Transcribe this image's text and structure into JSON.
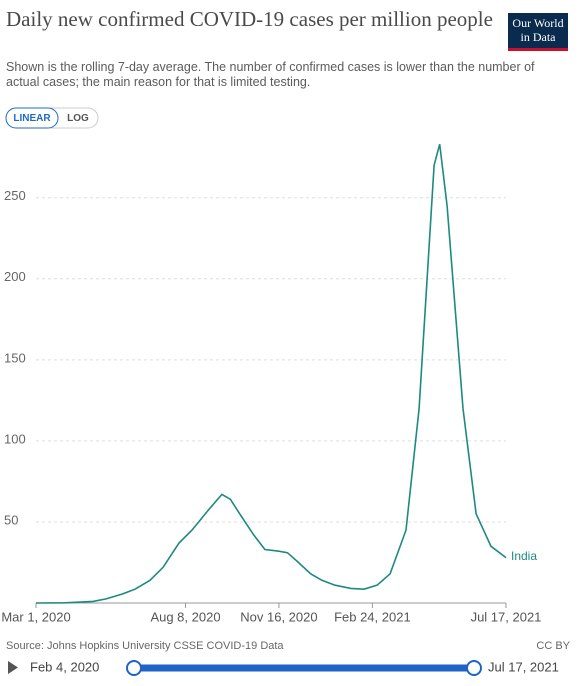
{
  "logo": [
    "Our World",
    "in Data"
  ],
  "controls": {
    "linear": "LINEAR",
    "log": "LOG"
  },
  "source": "Source: Johns Hopkins University CSSE COVID-19 Data",
  "license": "CC BY",
  "timeline": {
    "start": "Feb 4, 2020",
    "end": "Jul 17, 2021"
  },
  "chart_data": {
    "type": "line",
    "title": "Daily new confirmed COVID-19 cases per million people",
    "subtitle": "Shown is the rolling 7-day average. The number of confirmed cases is lower than the number of actual cases; the main reason for that is limited testing.",
    "x": [
      "2020-03-01",
      "2020-04-01",
      "2020-05-01",
      "2020-05-15",
      "2020-06-01",
      "2020-06-15",
      "2020-07-01",
      "2020-07-15",
      "2020-08-01",
      "2020-08-15",
      "2020-09-01",
      "2020-09-16",
      "2020-09-25",
      "2020-10-05",
      "2020-10-20",
      "2020-11-01",
      "2020-11-15",
      "2020-11-25",
      "2020-12-05",
      "2020-12-20",
      "2021-01-01",
      "2021-01-15",
      "2021-02-01",
      "2021-02-15",
      "2021-03-01",
      "2021-03-15",
      "2021-04-01",
      "2021-04-15",
      "2021-05-01",
      "2021-05-07",
      "2021-05-15",
      "2021-06-01",
      "2021-06-15",
      "2021-07-01",
      "2021-07-17"
    ],
    "series": [
      {
        "name": "India",
        "color": "#1d8a80",
        "values": [
          0,
          0.1,
          1,
          2.5,
          5.5,
          8.5,
          14,
          22,
          37,
          45,
          57,
          67,
          64,
          55,
          42,
          33,
          32,
          31,
          26,
          18,
          14,
          11,
          9,
          8.5,
          11,
          18,
          45,
          120,
          270,
          283,
          245,
          120,
          55,
          35,
          28
        ]
      }
    ],
    "xlim": [
      "2020-03-01",
      "2021-07-17"
    ],
    "xticks": [
      {
        "value": "2020-03-01",
        "label": "Mar 1, 2020"
      },
      {
        "value": "2020-08-08",
        "label": "Aug 8, 2020"
      },
      {
        "value": "2020-11-16",
        "label": "Nov 16, 2020"
      },
      {
        "value": "2021-02-24",
        "label": "Feb 24, 2021"
      },
      {
        "value": "2021-07-17",
        "label": "Jul 17, 2021"
      }
    ],
    "ylim": [
      0,
      285
    ],
    "yticks": [
      50,
      100,
      150,
      200,
      250
    ],
    "grid": true
  }
}
